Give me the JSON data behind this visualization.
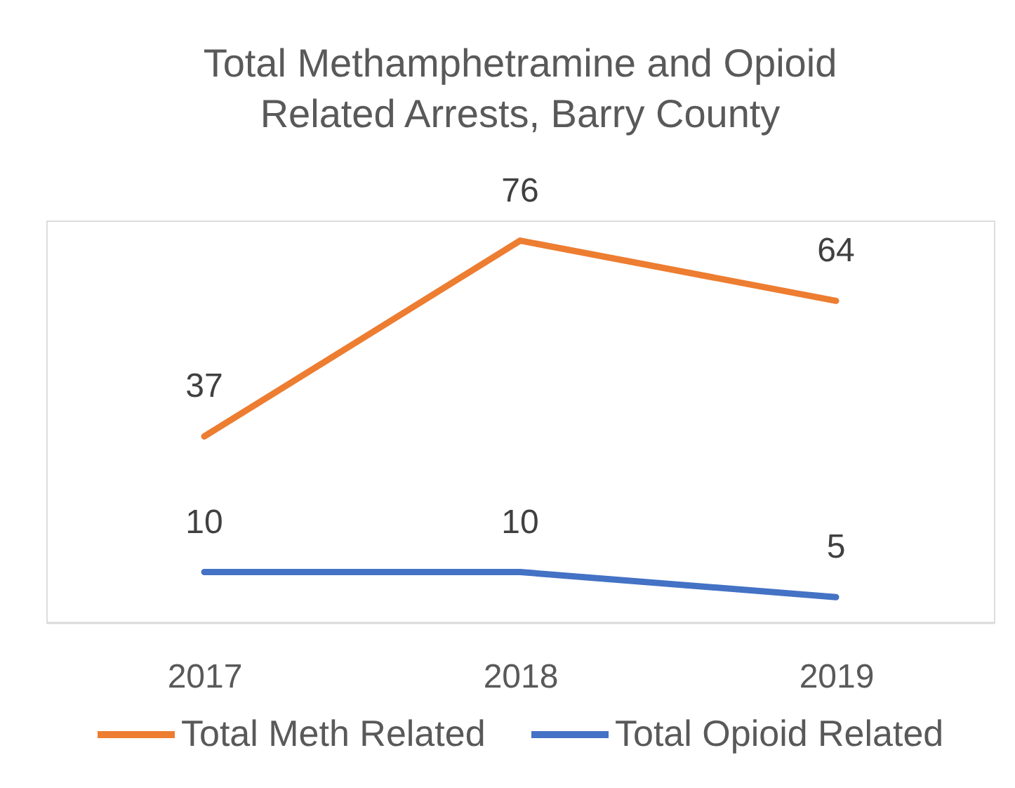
{
  "chart_data": {
    "type": "line",
    "title": "Total Methamphetramine and Opioid Related Arrests, Barry County",
    "categories": [
      "2017",
      "2018",
      "2019"
    ],
    "series": [
      {
        "name": "Total Meth Related",
        "color": "#ed7d31",
        "values": [
          37,
          76,
          64
        ]
      },
      {
        "name": "Total Opioid Related",
        "color": "#4472c4",
        "values": [
          10,
          10,
          5
        ]
      }
    ],
    "data_labels": true,
    "legend": "bottom"
  }
}
